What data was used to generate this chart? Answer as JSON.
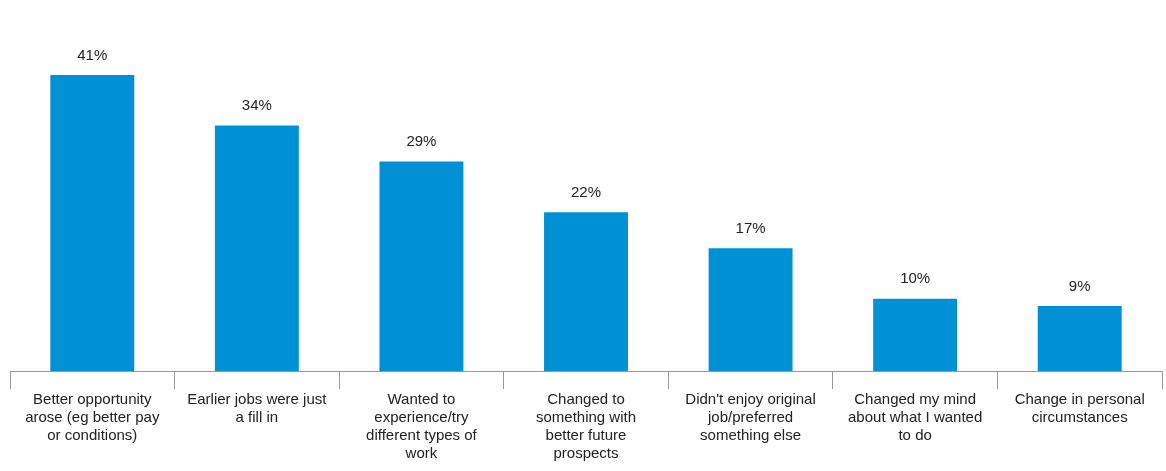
{
  "chart_data": {
    "type": "bar",
    "categories": [
      "Better opportunity arose (eg better pay or conditions)",
      "Earlier jobs were just a fill in",
      "Wanted to experience/try different types of work",
      "Changed to something with better future prospects",
      "Didn't enjoy original job/preferred something else",
      "Changed my mind about what I wanted to do",
      "Change in personal circumstances"
    ],
    "values": [
      41,
      34,
      29,
      22,
      17,
      10,
      9
    ],
    "color": "#0091d5",
    "value_labels": [
      "41%",
      "34%",
      "29%",
      "22%",
      "17%",
      "10%",
      "9%"
    ],
    "tick_labels": "x",
    "grid": false,
    "legend": false
  }
}
